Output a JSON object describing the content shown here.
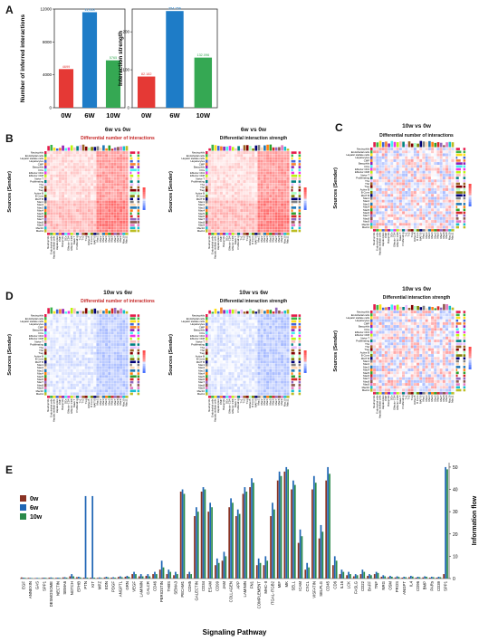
{
  "panels": {
    "A": "A",
    "B": "B",
    "C": "C",
    "D": "D",
    "E": "E"
  },
  "chart_data": [
    {
      "type": "bar",
      "panel": "A-left",
      "categories": [
        "0W",
        "6W",
        "10W"
      ],
      "values": [
        4699,
        11618,
        5765
      ],
      "value_labels": [
        "4699",
        "11,618",
        "5765"
      ],
      "colors": [
        "#e53935",
        "#1e7cc7",
        "#35a853"
      ],
      "ylabel": "Number of inferred interactions",
      "yticks": [
        0,
        4000,
        8000,
        12000
      ],
      "ylim": [
        0,
        12000
      ]
    },
    {
      "type": "bar",
      "panel": "A-right",
      "categories": [
        "0W",
        "6W",
        "10W"
      ],
      "values": [
        82.182,
        254.756,
        132.096
      ],
      "value_labels": [
        "82.182",
        "254.756",
        "132.096"
      ],
      "colors": [
        "#e53935",
        "#1e7cc7",
        "#35a853"
      ],
      "ylabel": "Interaction strength",
      "yticks": [
        0,
        100,
        200
      ],
      "ylim": [
        0,
        260
      ]
    },
    {
      "type": "bar",
      "panel": "E",
      "xlabel": "Signaling Pathway",
      "ylabel": "Information flow",
      "yticks": [
        0,
        10,
        20,
        30,
        40,
        50
      ],
      "ylim": [
        0,
        52
      ],
      "legend": {
        "placement": "top-left"
      },
      "series": [
        {
          "name": "0w",
          "color": "#8a3324"
        },
        {
          "name": "6w",
          "color": "#1f66b5"
        },
        {
          "name": "10w",
          "color": "#2a8a4a"
        }
      ],
      "categories": [
        "EGF",
        "ANNEXIN",
        "GAS",
        "SPP1",
        "DESMOSOME",
        "NECTIN",
        "SEMA6",
        "NOTCH",
        "EPHB",
        "PTN",
        "KIT",
        "MPZ",
        "EDN",
        "PDGF",
        "ANGPTL",
        "GRN",
        "VEGF",
        "LAMININ",
        "CALCR",
        "CD46",
        "PERIOSTIN",
        "THBS",
        "SEMA3",
        "PECAM1",
        "CDH5",
        "GALECTIN",
        "CD34",
        "ESAM",
        "CD99",
        "JAM",
        "COLLAGEN",
        "APP",
        "LAMININ",
        "FN1",
        "COMPLEMENT",
        "MHC-II",
        "ITGAL-ITGB2",
        "MIF",
        "MK",
        "SELL",
        "ICAM",
        "CXCL",
        "VISFATIN",
        "SELPLG",
        "CD45",
        "CD6",
        "IL16",
        "LCK",
        "FASLG",
        "CD22",
        "BAFF",
        "TNF",
        "NRG",
        "OSM",
        "PROS",
        "ANGPT",
        "IL4",
        "CD96",
        "BMP",
        "PARs",
        "CD39",
        "SPP1"
      ],
      "values": {
        "0w": [
          0.5,
          0.3,
          0.2,
          0.3,
          0.4,
          0.3,
          0.5,
          1.0,
          0.6,
          0.4,
          0.4,
          0.3,
          0.5,
          0.4,
          0.7,
          0.8,
          2.0,
          1.0,
          1.2,
          2.0,
          4.0,
          2.0,
          1.5,
          39.0,
          2.0,
          28.0,
          39.0,
          30.0,
          6.0,
          8.0,
          32.0,
          28.0,
          38.0,
          41.0,
          6.0,
          6.0,
          28.0,
          44.0,
          48.0,
          40.0,
          16.0,
          4.0,
          40.0,
          18.0,
          44.0,
          6.0,
          2.0,
          1.5,
          1.0,
          2.0,
          1.2,
          2.0,
          0.8,
          0.6,
          0.5,
          0.4,
          0.6,
          0.4,
          0.5,
          0.4,
          0.4,
          2.0
        ],
        "6w": [
          0.4,
          0.3,
          0.3,
          0.4,
          0.5,
          0.4,
          0.6,
          2.0,
          0.8,
          37.0,
          37.0,
          0.5,
          0.8,
          0.6,
          1.0,
          1.2,
          3.0,
          2.0,
          2.0,
          3.0,
          8.0,
          4.0,
          3.0,
          40.0,
          3.0,
          32.0,
          41.0,
          34.0,
          9.0,
          12.0,
          36.0,
          31.0,
          41.0,
          45.0,
          9.0,
          10.0,
          34.0,
          48.0,
          50.0,
          44.0,
          22.0,
          7.0,
          46.0,
          24.0,
          50.0,
          10.0,
          4.0,
          3.0,
          2.0,
          4.0,
          2.0,
          3.0,
          1.5,
          1.2,
          1.0,
          0.8,
          1.2,
          0.8,
          1.0,
          0.8,
          0.8,
          50.0
        ],
        "10w": [
          0.3,
          0.2,
          0.2,
          0.3,
          0.3,
          0.3,
          0.4,
          1.0,
          0.5,
          0.4,
          0.4,
          0.3,
          0.5,
          0.4,
          0.6,
          0.8,
          2.0,
          1.0,
          1.0,
          2.0,
          5.0,
          3.0,
          2.0,
          38.0,
          2.0,
          30.0,
          40.0,
          32.0,
          7.0,
          10.0,
          34.0,
          29.0,
          39.0,
          43.0,
          7.0,
          8.0,
          31.0,
          46.0,
          49.0,
          42.0,
          19.0,
          5.0,
          43.0,
          21.0,
          47.0,
          8.0,
          3.0,
          2.0,
          1.5,
          3.0,
          1.5,
          2.5,
          1.0,
          0.8,
          0.7,
          0.6,
          0.9,
          0.6,
          0.8,
          0.6,
          0.6,
          49.0
        ]
      }
    }
  ],
  "heatmaps": {
    "B1": {
      "title": "6w vs 0w",
      "subtitle": "Differential number of interactions",
      "subtitle_red": true
    },
    "B2": {
      "title": "6w vs 0w",
      "subtitle": "Differential interaction strength",
      "subtitle_red": false
    },
    "C": {
      "title": "10w vs  0w",
      "subtitle": "Differential number of interactions",
      "subtitle_red": false
    },
    "D1": {
      "title": "10w vs 6w",
      "subtitle": "Differential number of interactions",
      "subtitle_red": true
    },
    "D2": {
      "title": "10w vs 6w",
      "subtitle": "Differential interaction strength",
      "subtitle_red": false
    },
    "D3": {
      "title": "10w vs  0w",
      "subtitle": "Differential interaction strength",
      "subtitle_red": false
    },
    "ylabel": "Sources (Sender)",
    "cell_types": [
      "Neutrophils",
      "Endothelial cells",
      "Hepatic stellate cells",
      "Hepatocytes",
      "CMP",
      "Basophils",
      "DCs",
      "Effector CD4",
      "Effector CD8",
      "Naive T",
      "Proliferating",
      "Th1",
      "Th2",
      "Treg",
      "Active B",
      "B Cons",
      "MAIT B",
      "Mac1",
      "Mac2",
      "Mac3",
      "Mac4",
      "Mac5",
      "Mac6",
      "Mac7",
      "Mac8",
      "Mac9",
      "Mac10",
      "Mac11"
    ]
  }
}
